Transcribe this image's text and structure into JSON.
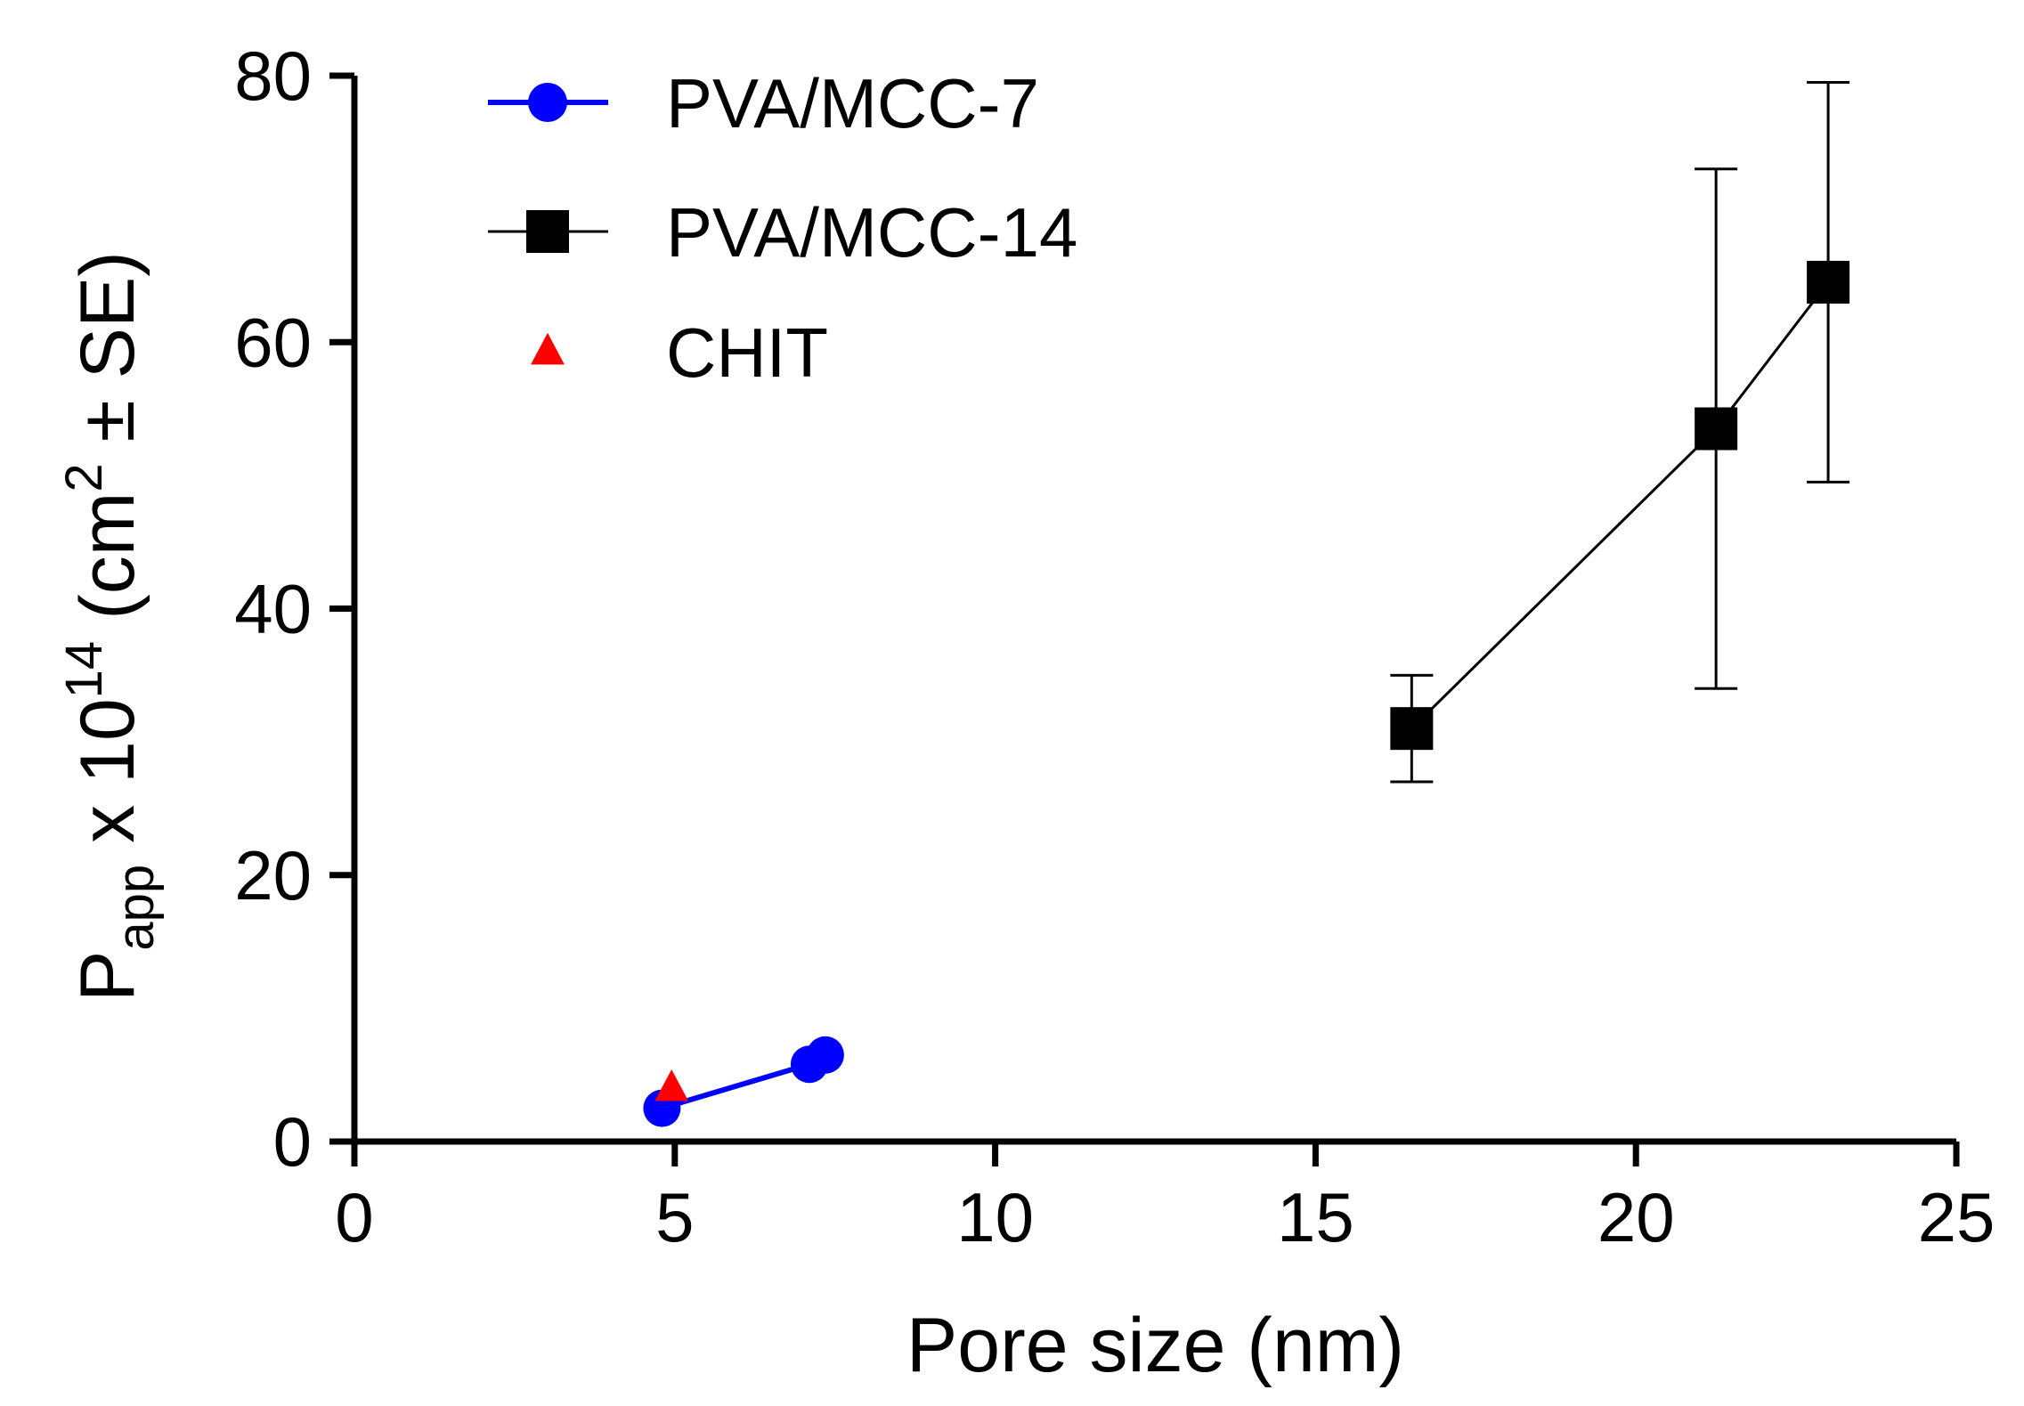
{
  "chart_data": {
    "type": "scatter",
    "title": "",
    "xlabel": "Pore size (nm)",
    "ylabel": {
      "base": "P",
      "sub": "app",
      "times": " x 10",
      "exp": "14",
      "unit_open": " (cm",
      "unit_exp": "2",
      "unit_close": " ± SE)"
    },
    "xlim": [
      0,
      25
    ],
    "ylim": [
      0,
      80
    ],
    "xticks": [
      "0",
      "5",
      "10",
      "15",
      "20",
      "25"
    ],
    "yticks": [
      "0",
      "20",
      "40",
      "60",
      "80"
    ],
    "grid": false,
    "legend_position": "top-left",
    "series": [
      {
        "name": "PVA/MCC-7",
        "color": "#0000ff",
        "marker": "circle",
        "connect": true,
        "points": [
          {
            "x": 4.8,
            "y": 2.5,
            "err": 0
          },
          {
            "x": 7.1,
            "y": 5.8,
            "err": 0
          },
          {
            "x": 7.35,
            "y": 6.5,
            "err": 0
          }
        ]
      },
      {
        "name": "PVA/MCC-14",
        "color": "#000000",
        "marker": "square",
        "connect": true,
        "points": [
          {
            "x": 16.5,
            "y": 31,
            "err": 4
          },
          {
            "x": 21.25,
            "y": 53.5,
            "err": 19.5
          },
          {
            "x": 23.0,
            "y": 64.5,
            "err": 15
          }
        ]
      },
      {
        "name": "CHIT",
        "color": "#ff0000",
        "marker": "triangle",
        "connect": false,
        "points": [
          {
            "x": 4.95,
            "y": 4.0,
            "err": 0
          }
        ]
      }
    ]
  }
}
